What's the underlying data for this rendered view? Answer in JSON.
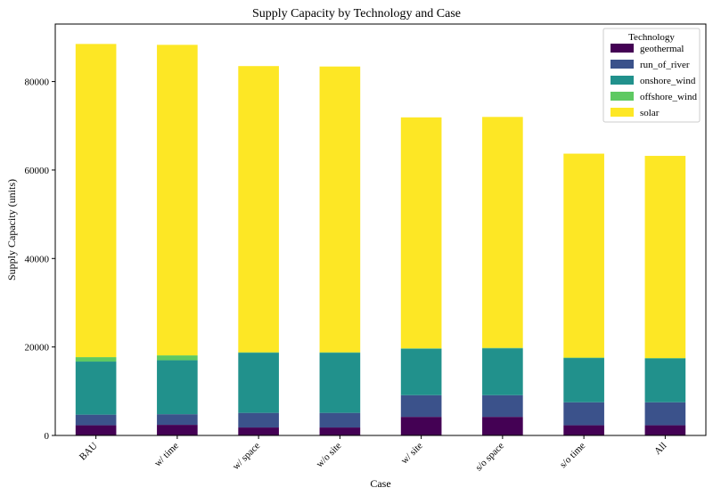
{
  "chart_data": {
    "type": "bar",
    "stacked": true,
    "title": "Supply Capacity by Technology and Case",
    "xlabel": "Case",
    "ylabel": "Supply Capacity (units)",
    "ylim": [
      0,
      93000
    ],
    "yticks": [
      0,
      20000,
      40000,
      60000,
      80000
    ],
    "categories": [
      "BAU",
      "w/ time",
      "w/ space",
      "w/o site",
      "w/ site",
      "s/o space",
      "s/o time",
      "All"
    ],
    "legend": {
      "title": "Technology",
      "placement": "top-right"
    },
    "grid": false,
    "series": [
      {
        "name": "geothermal",
        "color": "#440154",
        "values": [
          2300,
          2400,
          1800,
          1800,
          4200,
          4200,
          2300,
          2300
        ]
      },
      {
        "name": "run_of_river",
        "color": "#3b528b",
        "values": [
          2400,
          2400,
          3300,
          3300,
          4900,
          4900,
          5200,
          5200
        ]
      },
      {
        "name": "onshore_wind",
        "color": "#21918c",
        "values": [
          12000,
          12200,
          13600,
          13600,
          10500,
          10600,
          10000,
          9900
        ]
      },
      {
        "name": "offshore_wind",
        "color": "#5ec962",
        "values": [
          1000,
          1100,
          100,
          100,
          100,
          100,
          100,
          100
        ]
      },
      {
        "name": "solar",
        "color": "#fde725",
        "values": [
          70800,
          70200,
          64700,
          64600,
          52200,
          52200,
          46100,
          45700
        ]
      }
    ]
  }
}
